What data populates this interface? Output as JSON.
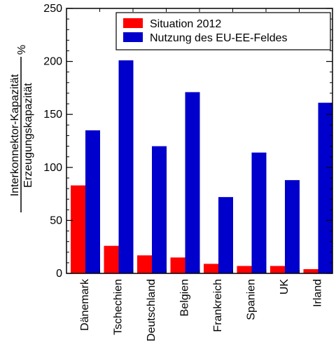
{
  "chart_data": {
    "type": "bar",
    "title": "",
    "xlabel": "",
    "ylabel": {
      "numerator": "Interkonnektor-Kapazität",
      "denominator": "Erzeugungskapazität",
      "unit": "%"
    },
    "ylim": [
      0,
      250
    ],
    "yticks": [
      0,
      50,
      100,
      150,
      200,
      250
    ],
    "grid": false,
    "legend_position": "top-right",
    "categories": [
      "Dänemark",
      "Tschechien",
      "Deutschland",
      "Belgien",
      "Frankreich",
      "Spanien",
      "UK",
      "Irland"
    ],
    "series": [
      {
        "name": "Situation 2012",
        "color": "#ff0000",
        "values": [
          83,
          26,
          17,
          15,
          9,
          7,
          7,
          4
        ]
      },
      {
        "name": "Nutzung des EU-EE-Feldes",
        "color": "#0000cc",
        "values": [
          135,
          201,
          120,
          171,
          72,
          114,
          88,
          161
        ]
      }
    ]
  }
}
